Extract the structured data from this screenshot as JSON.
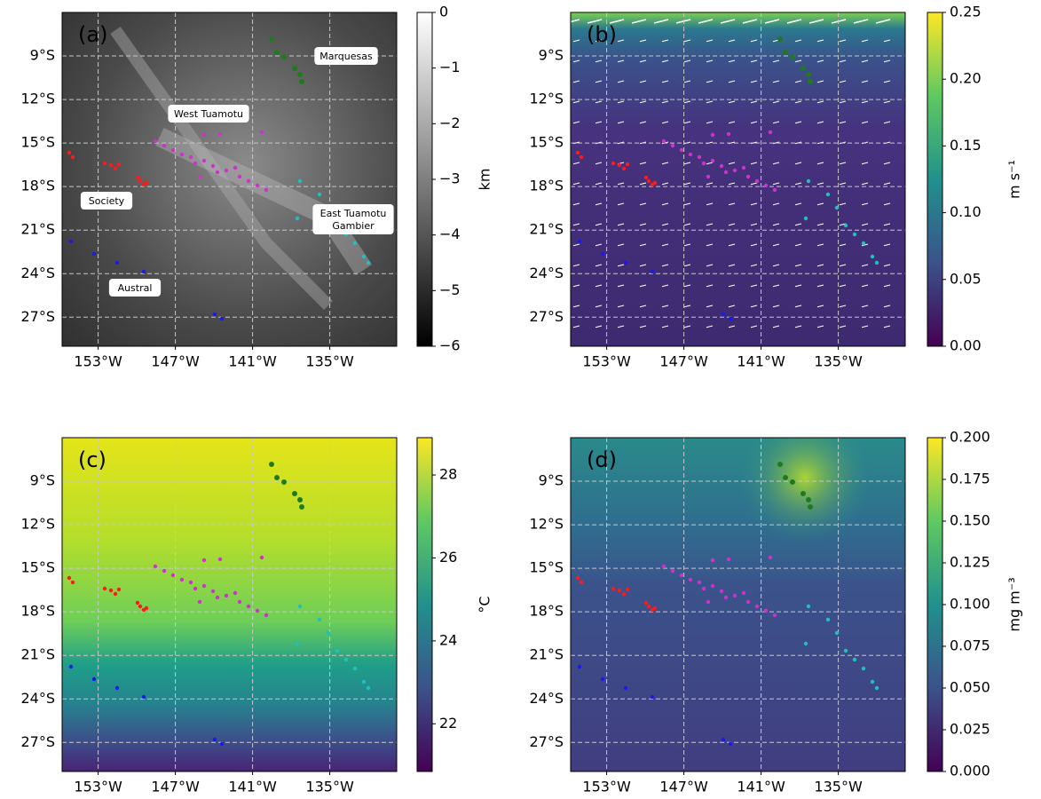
{
  "panels": [
    {
      "label": "(a)",
      "xlim": [
        -155.8,
        -129.8
      ],
      "ylim": [
        -29,
        -6
      ],
      "lon_ticks": [
        {
          "value": -153,
          "label": "153°W"
        },
        {
          "value": -147,
          "label": "147°W"
        },
        {
          "value": -141,
          "label": "141°W"
        },
        {
          "value": -135,
          "label": "135°W"
        }
      ],
      "lat_ticks": [
        {
          "value": -9,
          "label": "9°S"
        },
        {
          "value": -12,
          "label": "12°S"
        },
        {
          "value": -15,
          "label": "15°S"
        },
        {
          "value": -18,
          "label": "18°S"
        },
        {
          "value": -21,
          "label": "21°S"
        },
        {
          "value": -24,
          "label": "24°S"
        },
        {
          "value": -27,
          "label": "27°S"
        }
      ],
      "colorbar": {
        "label": "km",
        "lim": [
          -6,
          0
        ],
        "colormap": "gray",
        "ticks": [
          0,
          {
            "value": -1,
            "label": "−1"
          },
          {
            "value": -2,
            "label": "−2"
          },
          {
            "value": -3,
            "label": "−3"
          },
          {
            "value": -4,
            "label": "−4"
          },
          {
            "value": -5,
            "label": "−5"
          },
          {
            "value": -6,
            "label": "−6"
          }
        ]
      },
      "annotations": [
        {
          "lines": [
            "Marquesas"
          ],
          "color": "#2ca02c"
        },
        {
          "lines": [
            "West Tuamotu"
          ],
          "color": "#c000c0"
        },
        {
          "lines": [
            "Society"
          ],
          "color": "#ff2020"
        },
        {
          "lines": [
            "East Tuamotu",
            "Gambier"
          ],
          "color": "#17becf"
        },
        {
          "lines": [
            "Austral"
          ],
          "color": "#1010ee"
        }
      ]
    },
    {
      "label": "(b)",
      "xlim": [
        -155.8,
        -129.8
      ],
      "ylim": [
        -29,
        -6
      ],
      "lon_ticks": [
        {
          "value": -153,
          "label": "153°W"
        },
        {
          "value": -147,
          "label": "147°W"
        },
        {
          "value": -141,
          "label": "141°W"
        },
        {
          "value": -135,
          "label": "135°W"
        }
      ],
      "lat_ticks": [
        {
          "value": -9,
          "label": "9°S"
        },
        {
          "value": -12,
          "label": "12°S"
        },
        {
          "value": -15,
          "label": "15°S"
        },
        {
          "value": -18,
          "label": "18°S"
        },
        {
          "value": -21,
          "label": "21°S"
        },
        {
          "value": -24,
          "label": "24°S"
        },
        {
          "value": -27,
          "label": "27°S"
        }
      ],
      "colorbar": {
        "label": "m s⁻¹",
        "lim": [
          0,
          0.25
        ],
        "colormap": "viridis",
        "ticks": [
          {
            "value": 0,
            "label": "0.00"
          },
          {
            "value": 0.05,
            "label": "0.05"
          },
          {
            "value": 0.1,
            "label": "0.10"
          },
          {
            "value": 0.15,
            "label": "0.15"
          },
          {
            "value": 0.2,
            "label": "0.20"
          },
          {
            "value": 0.25,
            "label": "0.25"
          }
        ]
      }
    },
    {
      "label": "(c)",
      "xlim": [
        -155.8,
        -129.8
      ],
      "ylim": [
        -29,
        -6
      ],
      "lon_ticks": [
        {
          "value": -153,
          "label": "153°W"
        },
        {
          "value": -147,
          "label": "147°W"
        },
        {
          "value": -141,
          "label": "141°W"
        },
        {
          "value": -135,
          "label": "135°W"
        }
      ],
      "lat_ticks": [
        {
          "value": -9,
          "label": "9°S"
        },
        {
          "value": -12,
          "label": "12°S"
        },
        {
          "value": -15,
          "label": "15°S"
        },
        {
          "value": -18,
          "label": "18°S"
        },
        {
          "value": -21,
          "label": "21°S"
        },
        {
          "value": -24,
          "label": "24°S"
        },
        {
          "value": -27,
          "label": "27°S"
        }
      ],
      "colorbar": {
        "label": "°C",
        "lim": [
          20.85,
          28.9
        ],
        "colormap": "viridis",
        "ticks": [
          22,
          24,
          26,
          28
        ]
      }
    },
    {
      "label": "(d)",
      "xlim": [
        -155.8,
        -129.8
      ],
      "ylim": [
        -29,
        -6
      ],
      "lon_ticks": [
        {
          "value": -153,
          "label": "153°W"
        },
        {
          "value": -147,
          "label": "147°W"
        },
        {
          "value": -141,
          "label": "141°W"
        },
        {
          "value": -135,
          "label": "135°W"
        }
      ],
      "lat_ticks": [
        {
          "value": -9,
          "label": "9°S"
        },
        {
          "value": -12,
          "label": "12°S"
        },
        {
          "value": -15,
          "label": "15°S"
        },
        {
          "value": -18,
          "label": "18°S"
        },
        {
          "value": -21,
          "label": "21°S"
        },
        {
          "value": -24,
          "label": "24°S"
        },
        {
          "value": -27,
          "label": "27°S"
        }
      ],
      "colorbar": {
        "label": "mg m⁻³",
        "lim": [
          0,
          0.2
        ],
        "colormap": "viridis",
        "ticks": [
          {
            "value": 0,
            "label": "0.000"
          },
          {
            "value": 0.025,
            "label": "0.025"
          },
          {
            "value": 0.05,
            "label": "0.050"
          },
          {
            "value": 0.075,
            "label": "0.075"
          },
          {
            "value": 0.1,
            "label": "0.100"
          },
          {
            "value": 0.125,
            "label": "0.125"
          },
          {
            "value": 0.15,
            "label": "0.150"
          },
          {
            "value": 0.175,
            "label": "0.175"
          },
          {
            "value": 0.2,
            "label": "0.200"
          }
        ]
      }
    }
  ]
}
